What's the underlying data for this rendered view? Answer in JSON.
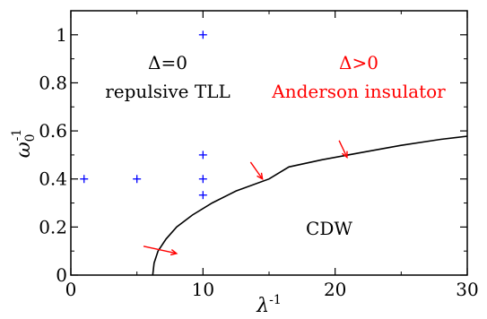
{
  "chart_data": {
    "type": "scatter",
    "xlabel": "λ",
    "xlabel_sup": "-1",
    "ylabel": "ω",
    "ylabel_sub": "0",
    "ylabel_sup": "-1",
    "xlim": [
      0,
      30
    ],
    "ylim": [
      0,
      1.1
    ],
    "xticks": [
      0,
      10,
      20,
      30
    ],
    "xtick_labels": [
      "0",
      "10",
      "20",
      "30"
    ],
    "yticks": [
      0,
      0.2,
      0.4,
      0.6,
      0.8,
      1.0
    ],
    "ytick_labels": [
      "0",
      "0.2",
      "0.4",
      "0.6",
      "0.8",
      "1"
    ],
    "grid": false,
    "series": [
      {
        "kind": "markers",
        "marker": "plus",
        "color": "#0000ff",
        "points": [
          [
            1,
            0.4
          ],
          [
            5,
            0.4
          ],
          [
            10,
            0.333
          ],
          [
            10,
            0.4
          ],
          [
            10,
            0.5
          ],
          [
            10,
            1.0
          ]
        ]
      },
      {
        "kind": "line",
        "color": "#000000",
        "points": [
          [
            6.2,
            0.0
          ],
          [
            6.3,
            0.05
          ],
          [
            6.6,
            0.1
          ],
          [
            7.2,
            0.15
          ],
          [
            8.0,
            0.2
          ],
          [
            9.2,
            0.25
          ],
          [
            10.7,
            0.3
          ],
          [
            12.5,
            0.35
          ],
          [
            15.0,
            0.4
          ],
          [
            16.5,
            0.45
          ],
          [
            19.0,
            0.48
          ],
          [
            22.0,
            0.51
          ],
          [
            25.0,
            0.54
          ],
          [
            28.0,
            0.565
          ],
          [
            30.0,
            0.578
          ]
        ]
      }
    ],
    "arrows": [
      {
        "from": [
          5.5,
          0.12
        ],
        "to": [
          8.0,
          0.09
        ],
        "color": "#ff0000"
      },
      {
        "from": [
          13.6,
          0.47
        ],
        "to": [
          14.5,
          0.4
        ],
        "color": "#ff0000"
      },
      {
        "from": [
          20.3,
          0.56
        ],
        "to": [
          20.9,
          0.49
        ],
        "color": "#ff0000"
      }
    ],
    "annotations": {
      "delta_zero": {
        "text": "Δ=0",
        "color": "#000000"
      },
      "repulsive_tll": {
        "text": "repulsive TLL",
        "color": "#000000"
      },
      "delta_positive": {
        "text": "Δ>0",
        "color": "#ff0000"
      },
      "anderson": {
        "text": "Anderson insulator",
        "color": "#ff0000"
      },
      "cdw": {
        "text": "CDW",
        "color": "#000000"
      }
    }
  }
}
